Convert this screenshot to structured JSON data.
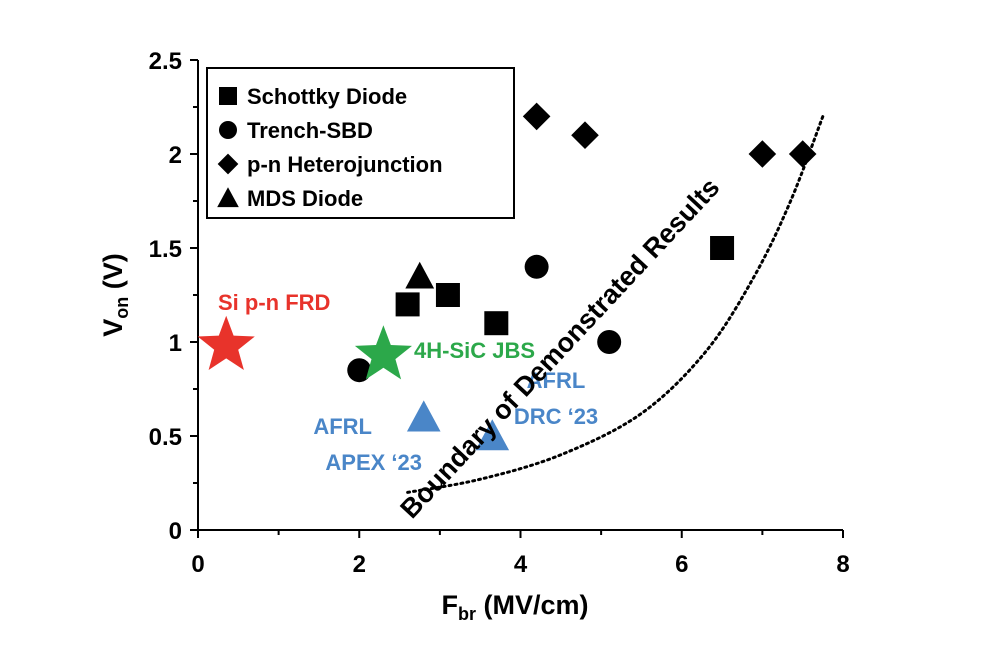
{
  "colors": {
    "axis": "#000000",
    "marker": "#000000",
    "si_star": "#e8332b",
    "sic_star": "#2ca84a",
    "afrl": "#4a86c8"
  },
  "chart_data": {
    "type": "scatter",
    "xlim": [
      0,
      8
    ],
    "ylim": [
      0,
      2.5
    ],
    "x_ticks": [
      "0",
      "2",
      "4",
      "6",
      "8"
    ],
    "y_ticks": [
      "0",
      "0.5",
      "1",
      "1.5",
      "2",
      "2.5"
    ],
    "xlabel_main": "F",
    "xlabel_sub": "br",
    "xlabel_rest": " (MV/cm)",
    "ylabel_main": "V",
    "ylabel_sub": "on",
    "ylabel_rest": " (V)",
    "grid": false,
    "legend_placement": "top-left",
    "series": [
      {
        "name": "Schottky Diode",
        "marker": "square",
        "points": [
          [
            2.6,
            1.2
          ],
          [
            3.1,
            1.25
          ],
          [
            3.7,
            1.1
          ],
          [
            6.5,
            1.5
          ]
        ]
      },
      {
        "name": "Trench-SBD",
        "marker": "circle",
        "points": [
          [
            2.0,
            0.85
          ],
          [
            4.2,
            1.4
          ],
          [
            5.1,
            1.0
          ]
        ]
      },
      {
        "name": "p-n Heterojunction",
        "marker": "diamond",
        "points": [
          [
            4.2,
            2.2
          ],
          [
            4.8,
            2.1
          ],
          [
            7.0,
            2.0
          ],
          [
            7.5,
            2.0
          ]
        ]
      },
      {
        "name": "MDS Diode",
        "marker": "triangle",
        "points": [
          [
            2.75,
            1.35
          ]
        ]
      }
    ],
    "highlights": [
      {
        "label": "Si p-n FRD",
        "marker": "star",
        "color": "#e8332b",
        "x": 0.35,
        "y": 0.98
      },
      {
        "label": "4H-SiC JBS",
        "marker": "star",
        "color": "#2ca84a",
        "x": 2.3,
        "y": 0.93
      },
      {
        "label_line1": "AFRL",
        "label_line2": "APEX ‘23",
        "marker": "triangle",
        "color": "#4a86c8",
        "x": 2.8,
        "y": 0.6
      },
      {
        "label_line1": "AFRL",
        "label_line2": "DRC ‘23",
        "marker": "triangle",
        "color": "#4a86c8",
        "x": 3.65,
        "y": 0.5
      }
    ],
    "boundary": {
      "label": "Boundary of Demonstrated Results",
      "points": [
        [
          2.6,
          0.2
        ],
        [
          3.5,
          0.27
        ],
        [
          4.5,
          0.4
        ],
        [
          5.5,
          0.62
        ],
        [
          6.3,
          0.95
        ],
        [
          6.9,
          1.35
        ],
        [
          7.35,
          1.75
        ],
        [
          7.75,
          2.2
        ]
      ]
    }
  }
}
